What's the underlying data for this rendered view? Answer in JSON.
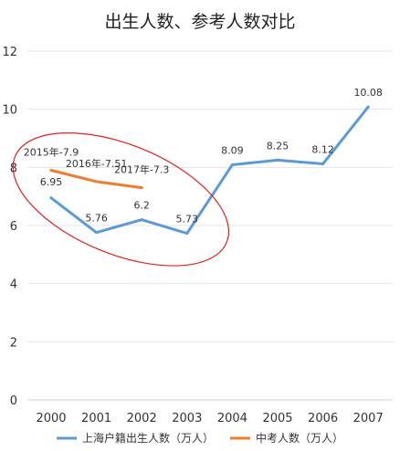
{
  "chart_data": {
    "type": "line",
    "title": "出生人数、参考人数对比",
    "xlabel": "",
    "ylabel": "",
    "categories": [
      "2000",
      "2001",
      "2002",
      "2003",
      "2004",
      "2005",
      "2006",
      "2007"
    ],
    "ylim": [
      0,
      12
    ],
    "yticks": [
      0,
      2,
      4,
      6,
      8,
      10,
      12
    ],
    "grid": true,
    "legend": "bottom",
    "series": [
      {
        "name": "上海户籍出生人数（万人）",
        "color": "#5B9BD5",
        "values": [
          6.95,
          5.76,
          6.2,
          5.73,
          8.09,
          8.25,
          8.12,
          10.08
        ],
        "labels": [
          "6.95",
          "5.76",
          "6.2",
          "5.73",
          "8.09",
          "8.25",
          "8.12",
          "10.08"
        ]
      },
      {
        "name": "中考人数（万人）",
        "color": "#ED7D31",
        "values": [
          7.9,
          7.51,
          7.3,
          null,
          null,
          null,
          null,
          null
        ],
        "labels": [
          "2015年-7.9",
          "2016年-7.51",
          "2017年-7.3"
        ]
      }
    ],
    "highlight": {
      "shape": "ellipse",
      "color": "#E02020",
      "categories": [
        "2000",
        "2003"
      ]
    }
  }
}
